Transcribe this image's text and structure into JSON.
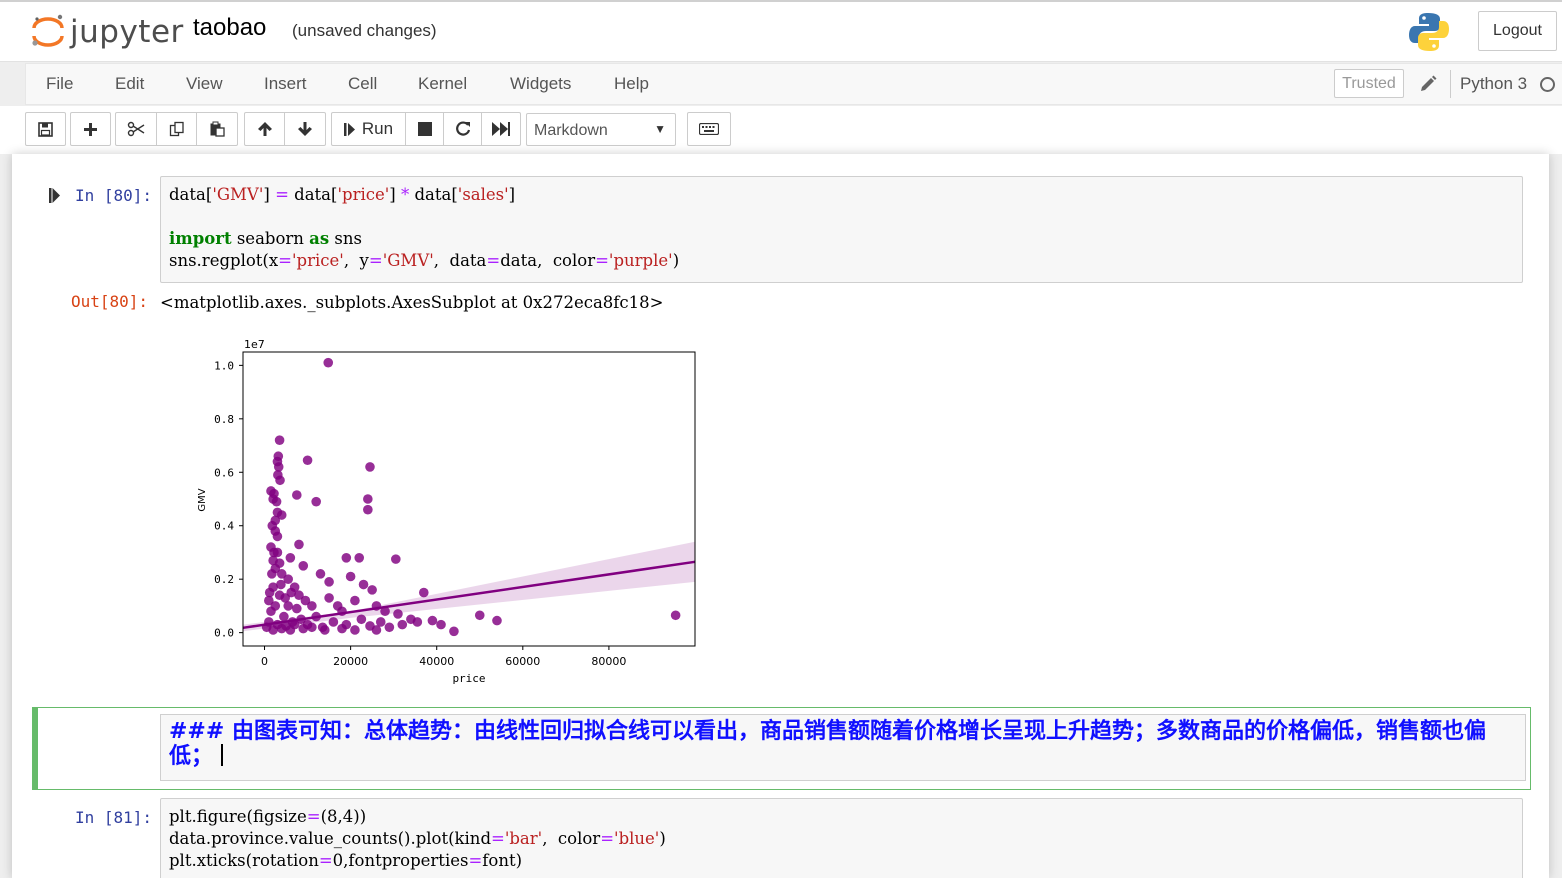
{
  "header": {
    "logo_text": "jupyter",
    "notebook_name": "taobao",
    "save_status": "(unsaved changes)",
    "logout_label": "Logout"
  },
  "menubar": {
    "items": [
      "File",
      "Edit",
      "View",
      "Insert",
      "Cell",
      "Kernel",
      "Widgets",
      "Help"
    ],
    "trusted_label": "Trusted",
    "kernel_name": "Python 3"
  },
  "toolbar": {
    "run_label": "Run",
    "cell_type": "Markdown",
    "icons": [
      "save-icon",
      "plus-icon",
      "cut-icon",
      "copy-icon",
      "paste-icon",
      "arrow-up-icon",
      "arrow-down-icon",
      "run-icon",
      "stop-icon",
      "restart-icon",
      "fast-forward-icon",
      "keyboard-icon"
    ]
  },
  "cells": {
    "cell1": {
      "in_prompt": "In  [80]:",
      "code": {
        "l1_a": "data[",
        "l1_s1": "'GMV'",
        "l1_b": "] ",
        "l1_eq": "=",
        "l1_c": " data[",
        "l1_s2": "'price'",
        "l1_d": "] ",
        "l1_mul": "*",
        "l1_e": " data[",
        "l1_s3": "'sales'",
        "l1_f": "]",
        "l2_import": "import",
        "l2_mod": " seaborn ",
        "l2_as": "as",
        "l2_alias": " sns",
        "l3_a": "sns.regplot(x",
        "l3_eq1": "=",
        "l3_s1": "'price'",
        "l3_b": ",  y",
        "l3_eq2": "=",
        "l3_s2": "'GMV'",
        "l3_c": ",  data",
        "l3_eq3": "=",
        "l3_d": "data,  color",
        "l3_eq4": "=",
        "l3_s3": "'purple'",
        "l3_e": ")"
      },
      "out_prompt": "Out[80]:",
      "output_text": "<matplotlib.axes._subplots.AxesSubplot at 0x272eca8fc18>"
    },
    "markdown": {
      "text": "### 由图表可知：总体趋势：由线性回归拟合线可以看出，商品销售额随着价格增长呈现上升趋势；多数商品的价格偏低，销售额也偏低；"
    },
    "cell2": {
      "in_prompt": "In  [81]:",
      "code": {
        "l1_a": "plt.figure(figsize",
        "l1_eq": "=",
        "l1_b": "(8,4))",
        "l2_a": "data.province.value_counts().plot(kind",
        "l2_eq1": "=",
        "l2_s1": "'bar'",
        "l2_b": ",  color",
        "l2_eq2": "=",
        "l2_s2": "'blue'",
        "l2_c": ")",
        "l3_a": "plt.xticks(rotation",
        "l3_eq1": "=",
        "l3_b": "0,fontproperties",
        "l3_eq2": "=",
        "l3_c": "font)"
      }
    }
  },
  "chart_data": {
    "type": "scatter",
    "title": "",
    "xlabel": "price",
    "ylabel": "GMV",
    "y_offset_label": "1e7",
    "xlim": [
      -5000,
      100000
    ],
    "ylim": [
      -0.05,
      1.05
    ],
    "x_ticks": [
      0,
      20000,
      40000,
      60000,
      80000
    ],
    "y_ticks": [
      0.0,
      0.2,
      0.4,
      0.6,
      0.8,
      1.0
    ],
    "y_tick_labels": [
      "0.0",
      "0.2",
      "0.4",
      "0.6",
      "0.8",
      "1.0"
    ],
    "color": "#800080",
    "regression_line": {
      "x": [
        -5000,
        100000
      ],
      "y": [
        0.018,
        0.265
      ]
    },
    "confidence_band": {
      "x": [
        -5000,
        20000,
        100000
      ],
      "upper": [
        0.03,
        0.08,
        0.34
      ],
      "lower": [
        0.005,
        0.055,
        0.19
      ]
    },
    "points": [
      [
        14800,
        1.01
      ],
      [
        3500,
        0.72
      ],
      [
        3200,
        0.66
      ],
      [
        3000,
        0.64
      ],
      [
        3300,
        0.62
      ],
      [
        10000,
        0.645
      ],
      [
        24500,
        0.62
      ],
      [
        3100,
        0.59
      ],
      [
        3600,
        0.57
      ],
      [
        1500,
        0.53
      ],
      [
        2200,
        0.52
      ],
      [
        7500,
        0.515
      ],
      [
        2000,
        0.5
      ],
      [
        2800,
        0.49
      ],
      [
        12000,
        0.49
      ],
      [
        24000,
        0.5
      ],
      [
        24000,
        0.46
      ],
      [
        3000,
        0.45
      ],
      [
        4000,
        0.44
      ],
      [
        2500,
        0.42
      ],
      [
        1800,
        0.4
      ],
      [
        2500,
        0.38
      ],
      [
        3000,
        0.36
      ],
      [
        8000,
        0.33
      ],
      [
        6000,
        0.28
      ],
      [
        9000,
        0.25
      ],
      [
        19000,
        0.28
      ],
      [
        22000,
        0.28
      ],
      [
        30500,
        0.275
      ],
      [
        3000,
        0.3
      ],
      [
        2000,
        0.27
      ],
      [
        13000,
        0.22
      ],
      [
        15000,
        0.19
      ],
      [
        20000,
        0.21
      ],
      [
        23000,
        0.18
      ],
      [
        25000,
        0.16
      ],
      [
        37000,
        0.15
      ],
      [
        4000,
        0.22
      ],
      [
        5500,
        0.2
      ],
      [
        7000,
        0.17
      ],
      [
        2000,
        0.17
      ],
      [
        8000,
        0.14
      ],
      [
        9500,
        0.12
      ],
      [
        11000,
        0.1
      ],
      [
        15000,
        0.13
      ],
      [
        17000,
        0.1
      ],
      [
        18000,
        0.08
      ],
      [
        21000,
        0.12
      ],
      [
        26000,
        0.1
      ],
      [
        28000,
        0.08
      ],
      [
        31000,
        0.07
      ],
      [
        34000,
        0.05
      ],
      [
        35500,
        0.04
      ],
      [
        39000,
        0.045
      ],
      [
        41000,
        0.03
      ],
      [
        44000,
        0.005
      ],
      [
        50000,
        0.065
      ],
      [
        54000,
        0.045
      ],
      [
        95500,
        0.065
      ],
      [
        1000,
        0.12
      ],
      [
        1500,
        0.08
      ],
      [
        2500,
        0.1
      ],
      [
        3500,
        0.14
      ],
      [
        4500,
        0.06
      ],
      [
        5500,
        0.1
      ],
      [
        6500,
        0.04
      ],
      [
        7500,
        0.09
      ],
      [
        8500,
        0.05
      ],
      [
        10000,
        0.03
      ],
      [
        12000,
        0.06
      ],
      [
        13500,
        0.02
      ],
      [
        16000,
        0.04
      ],
      [
        19000,
        0.03
      ],
      [
        22500,
        0.05
      ],
      [
        24500,
        0.025
      ],
      [
        27000,
        0.04
      ],
      [
        29000,
        0.02
      ],
      [
        32000,
        0.03
      ],
      [
        500,
        0.02
      ],
      [
        1000,
        0.04
      ],
      [
        2000,
        0.01
      ],
      [
        3000,
        0.03
      ],
      [
        4000,
        0.015
      ],
      [
        5000,
        0.025
      ],
      [
        6000,
        0.01
      ],
      [
        7000,
        0.03
      ],
      [
        9000,
        0.015
      ],
      [
        11000,
        0.02
      ],
      [
        14000,
        0.01
      ],
      [
        18000,
        0.015
      ],
      [
        21000,
        0.01
      ],
      [
        26000,
        0.01
      ],
      [
        2500,
        0.24
      ],
      [
        3500,
        0.26
      ],
      [
        1500,
        0.32
      ],
      [
        2200,
        0.3
      ],
      [
        3800,
        0.18
      ],
      [
        4800,
        0.13
      ],
      [
        6200,
        0.15
      ],
      [
        1200,
        0.15
      ],
      [
        1700,
        0.22
      ]
    ]
  }
}
